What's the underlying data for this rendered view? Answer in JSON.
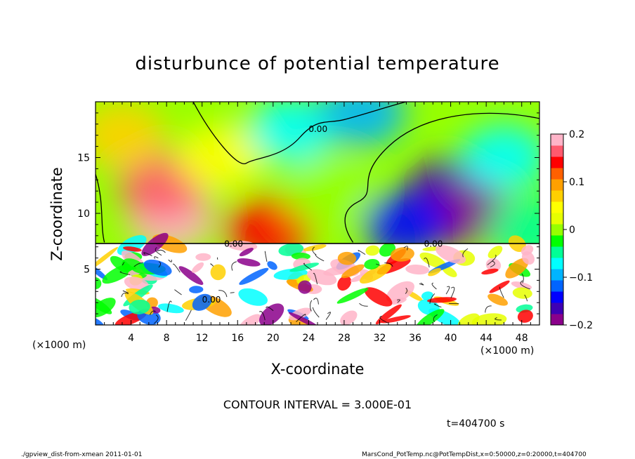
{
  "chart_data": {
    "type": "heatmap",
    "title": "disturbunce of potential temperature",
    "xlabel": "X-coordinate",
    "ylabel": "Z-coordinate",
    "x_unit_label": "(×1000 m)",
    "x_ticks": [
      4,
      8,
      12,
      16,
      20,
      24,
      28,
      32,
      36,
      40,
      44,
      48
    ],
    "y_ticks": [
      5,
      10,
      15
    ],
    "xlim": [
      0,
      50
    ],
    "ylim": [
      0,
      20
    ],
    "colorbar": {
      "ticks": [
        0.2,
        0.1,
        0,
        -0.1,
        -0.2
      ],
      "tick_labels": [
        "0.2",
        "0.1",
        "0",
        "−0.1",
        "−0.2"
      ],
      "range": [
        -0.2,
        0.2
      ],
      "colors": [
        "#8b008b",
        "#3e00b4",
        "#0000ff",
        "#0064ff",
        "#00b4ff",
        "#00ffff",
        "#00ff96",
        "#00ff00",
        "#96ff00",
        "#e6ff00",
        "#ffff00",
        "#ffd000",
        "#ffa000",
        "#ff6000",
        "#ff0000",
        "#ff5a6e",
        "#ffb4c8"
      ]
    },
    "contour_interval_text": "CONTOUR INTERVAL = 3.000E-01",
    "contour_labels": [
      "0.00"
    ],
    "time_text": "t=404700 s",
    "blobs": [
      {
        "x": 8.5,
        "z": 9.5,
        "value": 0.21
      },
      {
        "x": 7.5,
        "z": 12.5,
        "value": 0.16
      },
      {
        "x": 19.5,
        "z": 8.5,
        "value": 0.13
      },
      {
        "x": 14,
        "z": 15,
        "value": 0.04
      },
      {
        "x": 22,
        "z": 17.5,
        "value": -0.06
      },
      {
        "x": 30,
        "z": 19,
        "value": -0.1
      },
      {
        "x": 26,
        "z": 12,
        "value": 0.0
      },
      {
        "x": 40,
        "z": 12,
        "value": -0.16
      },
      {
        "x": 42,
        "z": 10,
        "value": -0.2
      },
      {
        "x": 46,
        "z": 15,
        "value": -0.08
      },
      {
        "x": 35,
        "z": 9,
        "value": -0.13
      },
      {
        "x": 3,
        "z": 17,
        "value": 0.08
      },
      {
        "x": 49,
        "z": 8.5,
        "value": -0.05
      }
    ]
  },
  "footer": {
    "left": "./gpview_dist-from-xmean  2011-01-01",
    "right": "MarsCond_PotTemp.nc@PotTempDist,x=0:50000,z=0:20000,t=404700"
  }
}
